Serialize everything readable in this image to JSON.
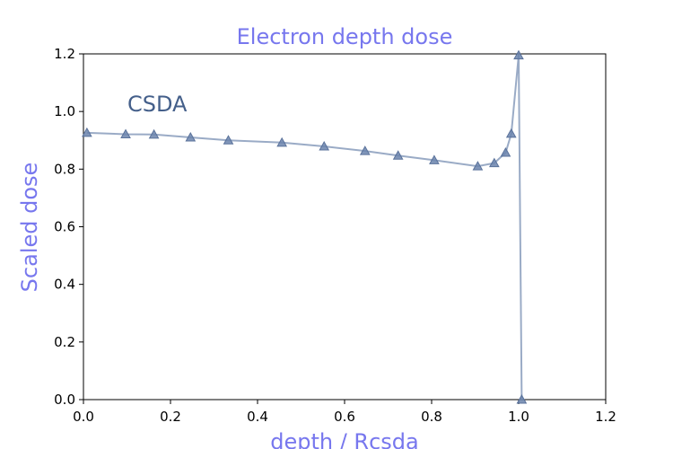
{
  "chart_data": {
    "type": "line",
    "title": "Electron depth dose",
    "xlabel": "depth / Rcsda",
    "ylabel": "Scaled dose",
    "xlim": [
      0,
      1.2
    ],
    "ylim": [
      0,
      1.2
    ],
    "xticks": [
      "0.0",
      "0.2",
      "0.4",
      "0.6",
      "0.8",
      "1.0",
      "1.2"
    ],
    "yticks": [
      "0.0",
      "0.2",
      "0.4",
      "0.6",
      "0.8",
      "1.0",
      "1.2"
    ],
    "grid": false,
    "annotation": "CSDA",
    "series": [
      {
        "line_color": "#9aabc6",
        "marker": "triangle",
        "marker_color": "#6b84ad",
        "x": [
          0.008,
          0.097,
          0.162,
          0.246,
          0.333,
          0.456,
          0.553,
          0.647,
          0.723,
          0.806,
          0.906,
          0.944,
          0.97,
          0.983,
          1.0,
          1.007
        ],
        "y": [
          0.926,
          0.921,
          0.92,
          0.91,
          0.9,
          0.892,
          0.879,
          0.863,
          0.847,
          0.831,
          0.81,
          0.821,
          0.857,
          0.923,
          1.195,
          0.0
        ]
      }
    ]
  }
}
